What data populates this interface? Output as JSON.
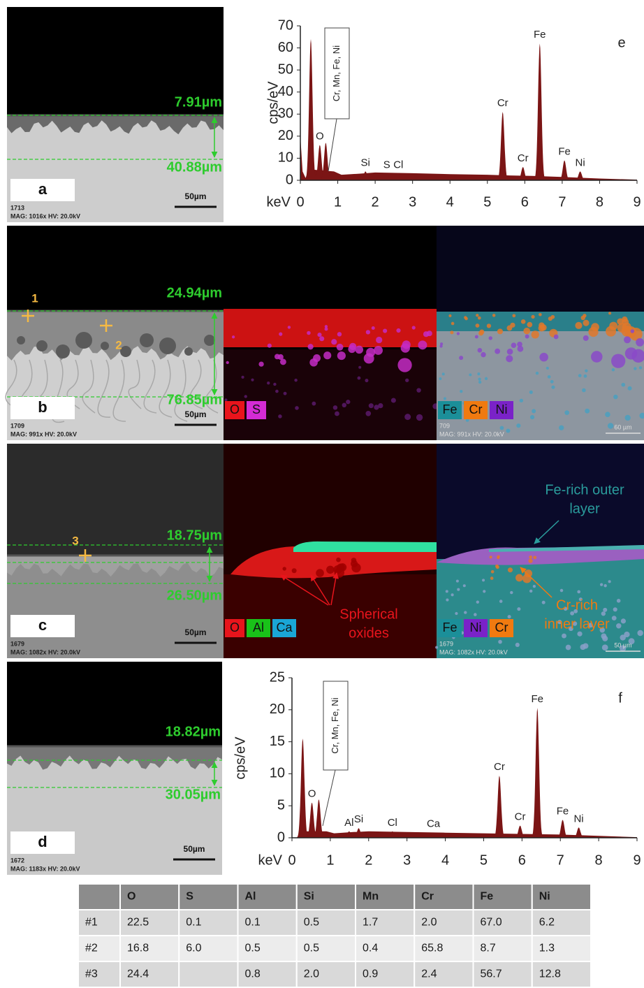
{
  "panels": [
    {
      "letter": "a",
      "id": "1713",
      "mag": "MAG: 1016x  HV: 20.0kV",
      "scale": "50µm",
      "thickness": [
        "7.91µm",
        "40.88µm"
      ]
    },
    {
      "letter": "b",
      "id": "1709",
      "mag": "MAG: 991x  HV: 20.0kV",
      "scale": "50µm",
      "thickness": [
        "24.94µm",
        "76.85µm"
      ],
      "points": [
        "1",
        "2"
      ]
    },
    {
      "letter": "c",
      "id": "1679",
      "mag": "MAG: 1082x  HV: 20.0kV",
      "scale": "50µm",
      "thickness": [
        "18.75µm",
        "26.50µm"
      ],
      "points": [
        "3"
      ]
    },
    {
      "letter": "d",
      "id": "1672",
      "mag": "MAG: 1183x  HV: 20.0kV",
      "scale": "50µm",
      "thickness": [
        "18.82µm",
        "30.05µm"
      ]
    }
  ],
  "maps": [
    {
      "legend": [
        {
          "name": "O",
          "color": "#e8141c"
        },
        {
          "name": "S",
          "color": "#d42bd4"
        }
      ]
    },
    {
      "legend": [
        {
          "name": "Fe",
          "color": "#1b8f99"
        },
        {
          "name": "Cr",
          "color": "#f07a10"
        },
        {
          "name": "Ni",
          "color": "#7a22c8"
        }
      ],
      "id": "709",
      "mag": "MAG: 991x  HV: 20.0kV",
      "scale": "60 µm"
    },
    {
      "legend": [
        {
          "name": "O",
          "color": "#e8141c"
        },
        {
          "name": "Al",
          "color": "#19c219"
        },
        {
          "name": "Ca",
          "color": "#1aa6d6"
        }
      ],
      "annotations": [
        {
          "lines": [
            "Spherical",
            "oxides"
          ],
          "color": "#e8141c"
        }
      ]
    },
    {
      "legend": [
        {
          "name": "Fe",
          "color": "#1b8f99"
        },
        {
          "name": "Ni",
          "color": "#7a22c8"
        },
        {
          "name": "Cr",
          "color": "#f07a10"
        }
      ],
      "id": "1679",
      "mag": "MAG: 1082x  HV: 20.0kV",
      "scale": "50 µm",
      "annotations": [
        {
          "lines": [
            "Fe-rich outer",
            "layer"
          ],
          "color": "#2a9c9c"
        },
        {
          "lines": [
            "Cr-rich",
            "inner layer"
          ],
          "color": "#f07a10"
        }
      ]
    }
  ],
  "chart_data": [
    {
      "type": "spectrum",
      "label": "e",
      "xlabel": "keV",
      "ylabel": "cps/eV",
      "callout": "Cr, Mn, Fe, Ni",
      "color": "#7b1515",
      "xlim": [
        0,
        9
      ],
      "ylim": [
        0,
        70
      ],
      "xticks": [
        0,
        1,
        2,
        3,
        4,
        5,
        6,
        7,
        8,
        9
      ],
      "yticks": [
        0,
        10,
        20,
        30,
        40,
        50,
        60,
        70
      ],
      "continuum": {
        "x": [
          0,
          0.06,
          0.14,
          0.22,
          0.9,
          1.1,
          1.6,
          2,
          3,
          4,
          5,
          5.6,
          6.2,
          7,
          8,
          9
        ],
        "values": [
          20,
          4,
          1,
          5,
          4,
          2.5,
          3,
          3.5,
          3.2,
          2.8,
          2.5,
          2.2,
          2,
          1.5,
          0.8,
          0.3
        ]
      },
      "peaks": [
        {
          "x": 0.28,
          "value": 64
        },
        {
          "x": 0.52,
          "label": "O",
          "value": 16
        },
        {
          "x": 0.68,
          "value": 17
        },
        {
          "x": 1.74,
          "label": "Si",
          "value": 4
        },
        {
          "x": 2.31,
          "label": "S",
          "value": 3
        },
        {
          "x": 2.62,
          "label": "Cl",
          "value": 3
        },
        {
          "x": 5.41,
          "label": "Cr",
          "value": 31
        },
        {
          "x": 5.95,
          "label": "Cr",
          "value": 6
        },
        {
          "x": 6.4,
          "label": "Fe",
          "value": 62
        },
        {
          "x": 7.06,
          "label": "Fe",
          "value": 9
        },
        {
          "x": 7.48,
          "label": "Ni",
          "value": 4
        }
      ]
    },
    {
      "type": "spectrum",
      "label": "f",
      "xlabel": "keV",
      "ylabel": "cps/eV",
      "callout": "Cr, Mn, Fe, Ni",
      "color": "#7b1515",
      "xlim": [
        0,
        9
      ],
      "ylim": [
        0,
        25
      ],
      "xticks": [
        0,
        1,
        2,
        3,
        4,
        5,
        6,
        7,
        8,
        9
      ],
      "yticks": [
        0,
        5,
        10,
        15,
        20,
        25
      ],
      "continuum": {
        "x": [
          0,
          0.14,
          0.22,
          0.9,
          1.1,
          1.6,
          2,
          3,
          4,
          5,
          6,
          7,
          8,
          9
        ],
        "values": [
          0,
          0,
          1,
          1,
          0.7,
          0.9,
          1,
          0.9,
          0.8,
          0.7,
          0.6,
          0.5,
          0.3,
          0.1
        ]
      },
      "peaks": [
        {
          "x": 0.28,
          "value": 15.5
        },
        {
          "x": 0.52,
          "label": "O",
          "value": 5.5
        },
        {
          "x": 0.7,
          "value": 6
        },
        {
          "x": 1.49,
          "label": "Al",
          "value": 1
        },
        {
          "x": 1.74,
          "label": "Si",
          "value": 1.5
        },
        {
          "x": 2.62,
          "label": "Cl",
          "value": 1
        },
        {
          "x": 3.69,
          "label": "Ca",
          "value": 0.8
        },
        {
          "x": 5.41,
          "label": "Cr",
          "value": 9.7
        },
        {
          "x": 5.95,
          "label": "Cr",
          "value": 1.9
        },
        {
          "x": 6.4,
          "label": "Fe",
          "value": 20.3
        },
        {
          "x": 7.06,
          "label": "Fe",
          "value": 2.8
        },
        {
          "x": 7.48,
          "label": "Ni",
          "value": 1.6
        }
      ]
    }
  ],
  "table": {
    "header": [
      null,
      "O",
      "S",
      "Al",
      "Si",
      "Mn",
      "Cr",
      "Fe",
      "Ni"
    ],
    "rows": [
      [
        "#1",
        "22.5",
        "0.1",
        "0.1",
        "0.5",
        "1.7",
        "2.0",
        "67.0",
        "6.2"
      ],
      [
        "#2",
        "16.8",
        "6.0",
        "0.5",
        "0.5",
        "0.4",
        "65.8",
        "8.7",
        "1.3"
      ],
      [
        "#3",
        "24.4",
        null,
        "0.8",
        "2.0",
        "0.9",
        "2.4",
        "56.7",
        "12.8"
      ]
    ]
  }
}
